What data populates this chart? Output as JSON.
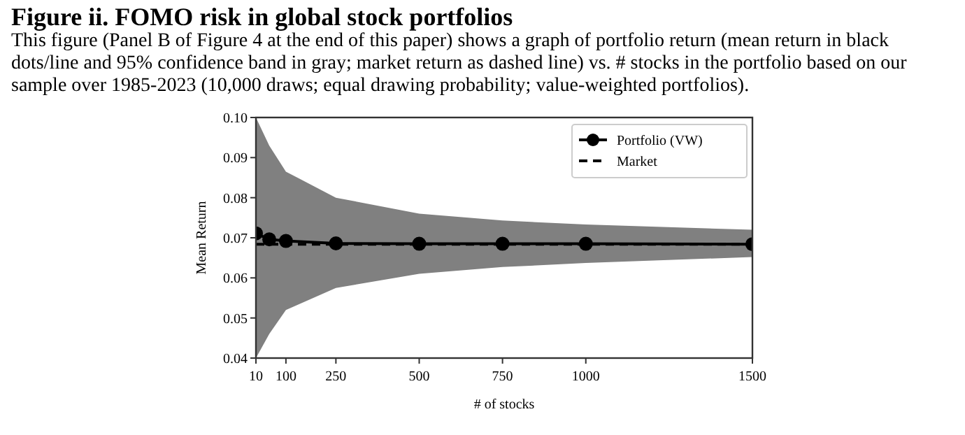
{
  "chart_data": {
    "type": "line",
    "title": "Figure ii. FOMO risk in global stock portfolios",
    "subtitle": "This figure (Panel B of Figure 4 at the end of this paper) shows a graph of portfolio return (mean return in black dots/line and 95% confidence band in gray; market return as dashed line) vs. # stocks in the portfolio based on our sample over 1985-2023 (10,000 draws; equal drawing probability; value-weighted portfolios).",
    "xlabel": "# of stocks",
    "ylabel": "Mean Return",
    "xlim": [
      10,
      1500
    ],
    "xticks": [
      10,
      100,
      250,
      500,
      750,
      1000,
      1500
    ],
    "ylim": [
      0.04,
      0.1
    ],
    "yticks": [
      0.04,
      0.05,
      0.06,
      0.07,
      0.08,
      0.09,
      {
        "value": 0.1,
        "label": "0.10"
      }
    ],
    "grid": false,
    "legend": "top right",
    "series": [
      {
        "name": "Market",
        "color": "#000000",
        "line_style": "dashed",
        "x": [
          10,
          1500
        ],
        "values": [
          0.0684,
          0.0684
        ]
      },
      {
        "name": "Portfolio (VW)",
        "color": "#000000",
        "line_style": "solid",
        "marker": "circle",
        "x": [
          10,
          50,
          100,
          250,
          500,
          750,
          1000,
          1500
        ],
        "values": [
          0.0711,
          0.0696,
          0.0692,
          0.0686,
          0.0685,
          0.0685,
          0.0685,
          0.0684
        ],
        "lower": [
          0.04,
          0.046,
          0.052,
          0.0575,
          0.061,
          0.0627,
          0.0637,
          0.0652
        ],
        "upper": [
          0.1,
          0.093,
          0.0865,
          0.08,
          0.076,
          0.0743,
          0.0733,
          0.072
        ]
      }
    ]
  }
}
